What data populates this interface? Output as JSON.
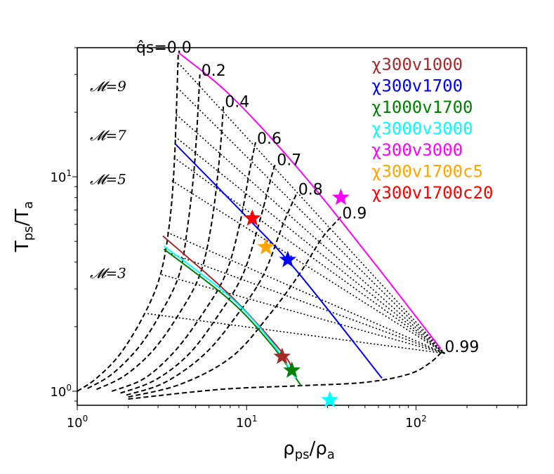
{
  "chart_data": {
    "type": "line",
    "xscale": "log",
    "yscale": "log",
    "xlim": [
      1,
      450
    ],
    "ylim": [
      0.86,
      40
    ],
    "xlabel": "ρps/ρa",
    "ylabel": "Tps/Ta",
    "xticks": [
      {
        "value": 1,
        "base": "10",
        "exp": "0"
      },
      {
        "value": 10,
        "base": "10",
        "exp": "1"
      },
      {
        "value": 100,
        "base": "10",
        "exp": "2"
      }
    ],
    "yticks": [
      {
        "value": 1,
        "base": "10",
        "exp": "0"
      },
      {
        "value": 10,
        "base": "10",
        "exp": "1"
      }
    ],
    "q_label_prefix": "q̂s=",
    "q_curves": [
      {
        "label": "0.0",
        "points": [
          [
            1,
            1
          ],
          [
            1.3,
            1.15
          ],
          [
            1.8,
            1.5
          ],
          [
            2.5,
            2.3
          ],
          [
            3.1,
            3.5
          ],
          [
            3.5,
            6
          ],
          [
            3.75,
            12
          ],
          [
            3.95,
            38
          ]
        ]
      },
      {
        "label": "0.2",
        "points": [
          [
            1.15,
            1.03
          ],
          [
            1.6,
            1.2
          ],
          [
            2.3,
            1.6
          ],
          [
            3.1,
            2.3
          ],
          [
            4,
            3.5
          ],
          [
            4.5,
            6
          ],
          [
            4.95,
            12
          ],
          [
            5.3,
            30
          ]
        ]
      },
      {
        "label": "0.4",
        "points": [
          [
            1.3,
            1.02
          ],
          [
            1.9,
            1.18
          ],
          [
            2.8,
            1.55
          ],
          [
            4,
            2.3
          ],
          [
            5.3,
            3.5
          ],
          [
            6.2,
            6
          ],
          [
            6.9,
            12
          ],
          [
            7.3,
            21.5
          ]
        ]
      },
      {
        "label": "0.6",
        "points": [
          [
            1.6,
            1.0
          ],
          [
            2.5,
            1.15
          ],
          [
            3.8,
            1.55
          ],
          [
            5.5,
            2.3
          ],
          [
            7.5,
            3.5
          ],
          [
            9.1,
            6
          ],
          [
            10.5,
            11
          ],
          [
            11.3,
            14.5
          ]
        ]
      },
      {
        "label": "0.7",
        "points": [
          [
            1.8,
            0.98
          ],
          [
            2.9,
            1.13
          ],
          [
            4.6,
            1.5
          ],
          [
            6.9,
            2.3
          ],
          [
            9.5,
            3.5
          ],
          [
            11.8,
            6
          ],
          [
            14,
            10
          ],
          [
            14.8,
            11.5
          ]
        ]
      },
      {
        "label": "0.8",
        "points": [
          [
            1.95,
            0.96
          ],
          [
            3.3,
            1.1
          ],
          [
            5.7,
            1.5
          ],
          [
            8.9,
            2.3
          ],
          [
            12.6,
            3.5
          ],
          [
            16.4,
            6
          ],
          [
            19.8,
            8.4
          ]
        ]
      },
      {
        "label": "0.9",
        "points": [
          [
            2.0,
            0.94
          ],
          [
            4.1,
            1.08
          ],
          [
            8.2,
            1.45
          ],
          [
            13.8,
            2.3
          ],
          [
            20.4,
            3.5
          ],
          [
            28,
            5.2
          ],
          [
            36,
            6.5
          ]
        ]
      },
      {
        "label": "0.99",
        "points": [
          [
            2.0,
            0.92
          ],
          [
            7,
            1.02
          ],
          [
            20,
            1.06
          ],
          [
            50,
            1.1
          ],
          [
            90,
            1.2
          ],
          [
            120,
            1.35
          ],
          [
            145,
            1.55
          ]
        ]
      }
    ],
    "mach_curves": [
      {
        "label": "𝓜=3",
        "points": [
          [
            3.15,
            3.5
          ],
          [
            148,
            1.5
          ]
        ]
      },
      {
        "label": "𝓜=5",
        "points": [
          [
            3.62,
            9.6
          ],
          [
            148,
            1.5
          ]
        ]
      },
      {
        "label": "𝓜=7",
        "points": [
          [
            3.78,
            15.4
          ],
          [
            148,
            1.5
          ]
        ]
      },
      {
        "label": "𝓜=9",
        "points": [
          [
            3.9,
            26
          ],
          [
            148,
            1.5
          ]
        ]
      },
      {
        "label": "",
        "points": [
          [
            3.72,
            12.3
          ],
          [
            148,
            1.5
          ]
        ]
      },
      {
        "label": "",
        "points": [
          [
            3.4,
            5.5
          ],
          [
            148,
            1.5
          ]
        ]
      },
      {
        "label": "",
        "points": [
          [
            3.28,
            4.5
          ],
          [
            148,
            1.5
          ]
        ]
      },
      {
        "label": "",
        "points": [
          [
            2.6,
            2.3
          ],
          [
            148,
            1.5
          ]
        ]
      },
      {
        "label": "",
        "points": [
          [
            3.84,
            19.5
          ],
          [
            148,
            1.5
          ]
        ]
      },
      {
        "label": "",
        "points": [
          [
            3.95,
            34
          ],
          [
            148,
            1.5
          ]
        ]
      }
    ],
    "series": [
      {
        "name": "χ300v1000",
        "color": "#a52a2a",
        "curve": [
          [
            3.2,
            5.3
          ],
          [
            8,
            2.8
          ],
          [
            16.4,
            1.5
          ],
          [
            18.5,
            1.25
          ]
        ],
        "star": [
          16.2,
          1.45
        ]
      },
      {
        "name": "χ300v1700",
        "color": "#0000ff",
        "curve": [
          [
            3.8,
            14.2
          ],
          [
            10,
            6.5
          ],
          [
            20,
            3.6
          ],
          [
            63,
            1.15
          ]
        ],
        "star": [
          17.5,
          4.1
        ]
      },
      {
        "name": "χ1000v1700",
        "color": "#008000",
        "curve": [
          [
            3.25,
            4.6
          ],
          [
            8,
            2.65
          ],
          [
            14,
            1.65
          ],
          [
            21,
            1.06
          ]
        ],
        "star": [
          18.5,
          1.25
        ]
      },
      {
        "name": "χ3000v3000",
        "color": "#00ffff",
        "curve": [
          [
            3.25,
            4.75
          ],
          [
            8,
            2.75
          ],
          [
            14,
            1.7
          ],
          [
            19.5,
            1.15
          ]
        ],
        "star": [
          31,
          0.91
        ]
      },
      {
        "name": "χ300v3000",
        "color": "#ff00ff",
        "curve": [
          [
            3.95,
            38
          ],
          [
            8,
            24
          ],
          [
            20,
            11
          ],
          [
            50,
            4.5
          ],
          [
            140,
            1.58
          ]
        ],
        "star": [
          36,
          8
        ]
      },
      {
        "name": "χ300v1700c5",
        "color": "#ffa500",
        "curve": null,
        "star": [
          13,
          4.7
        ]
      },
      {
        "name": "χ300v1700c20",
        "color": "#ff0000",
        "curve": null,
        "star": [
          10.8,
          6.4
        ]
      }
    ]
  }
}
